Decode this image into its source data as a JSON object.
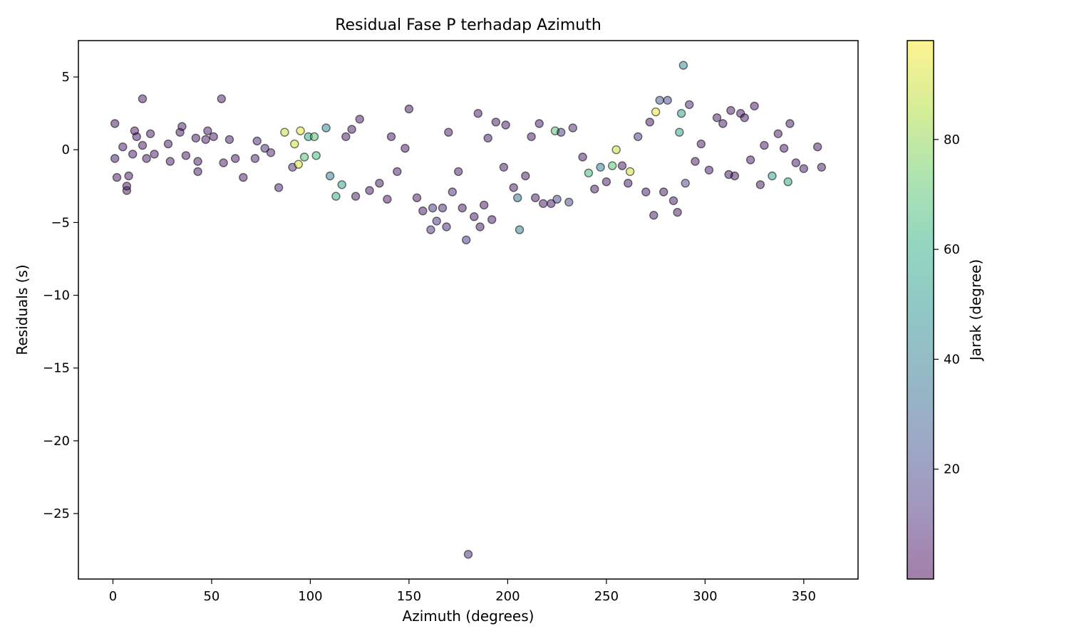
{
  "chart_data": {
    "type": "scatter",
    "title": "Residual Fase P terhadap Azimuth",
    "xlabel": "Azimuth (degrees)",
    "ylabel": "Residuals (s)",
    "xlim": [
      -17.5,
      377.5
    ],
    "ylim": [
      -29.5,
      7.5
    ],
    "xticks": [
      0,
      50,
      100,
      150,
      200,
      250,
      300,
      350
    ],
    "xtick_labels": [
      "0",
      "50",
      "100",
      "150",
      "200",
      "250",
      "300",
      "350"
    ],
    "yticks": [
      5,
      0,
      -5,
      -10,
      -15,
      -20,
      -25
    ],
    "ytick_labels": [
      "5",
      "0",
      "−5",
      "−10",
      "−15",
      "−20",
      "−25"
    ],
    "grid": false,
    "colorbar": {
      "label": "Jarak (degree)",
      "colormap": "viridis",
      "alpha": 0.5,
      "range": [
        0,
        98
      ],
      "ticks": [
        20,
        40,
        60,
        80
      ],
      "tick_labels": [
        "20",
        "40",
        "60",
        "80"
      ]
    },
    "points": [
      [
        1,
        1.8,
        4
      ],
      [
        1,
        -0.6,
        5
      ],
      [
        2,
        -1.9,
        5
      ],
      [
        5,
        0.2,
        5
      ],
      [
        7,
        -2.8,
        5
      ],
      [
        7,
        -2.5,
        5
      ],
      [
        8,
        -1.8,
        5
      ],
      [
        10,
        -0.3,
        6
      ],
      [
        11,
        1.3,
        6
      ],
      [
        12,
        0.9,
        5
      ],
      [
        15,
        3.5,
        5
      ],
      [
        15,
        0.3,
        5
      ],
      [
        17,
        -0.6,
        6
      ],
      [
        19,
        1.1,
        6
      ],
      [
        21,
        -0.3,
        6
      ],
      [
        28,
        0.4,
        5
      ],
      [
        29,
        -0.8,
        6
      ],
      [
        34,
        1.2,
        6
      ],
      [
        35,
        1.6,
        6
      ],
      [
        37,
        -0.4,
        5
      ],
      [
        42,
        0.8,
        6
      ],
      [
        43,
        -0.8,
        6
      ],
      [
        43,
        -1.5,
        6
      ],
      [
        47,
        0.7,
        6
      ],
      [
        48,
        1.3,
        6
      ],
      [
        51,
        0.9,
        6
      ],
      [
        55,
        3.5,
        6
      ],
      [
        56,
        -0.9,
        6
      ],
      [
        59,
        0.7,
        6
      ],
      [
        62,
        -0.6,
        6
      ],
      [
        66,
        -1.9,
        6
      ],
      [
        72,
        -0.6,
        8
      ],
      [
        73,
        0.6,
        8
      ],
      [
        77,
        0.1,
        10
      ],
      [
        80,
        -0.2,
        8
      ],
      [
        84,
        -2.6,
        8
      ],
      [
        87,
        1.2,
        88
      ],
      [
        91,
        -1.2,
        12
      ],
      [
        92,
        0.4,
        90
      ],
      [
        94,
        -1.0,
        92
      ],
      [
        95,
        1.3,
        94
      ],
      [
        97,
        -0.5,
        70
      ],
      [
        99,
        0.9,
        60
      ],
      [
        102,
        0.9,
        70
      ],
      [
        103,
        -0.4,
        65
      ],
      [
        108,
        1.5,
        45
      ],
      [
        110,
        -1.8,
        40
      ],
      [
        113,
        -3.2,
        60
      ],
      [
        116,
        -2.4,
        55
      ],
      [
        118,
        0.9,
        5
      ],
      [
        121,
        1.4,
        5
      ],
      [
        123,
        -3.2,
        5
      ],
      [
        125,
        2.1,
        5
      ],
      [
        130,
        -2.8,
        5
      ],
      [
        135,
        -2.3,
        5
      ],
      [
        139,
        -3.4,
        5
      ],
      [
        141,
        0.9,
        5
      ],
      [
        144,
        -1.5,
        5
      ],
      [
        148,
        0.1,
        5
      ],
      [
        150,
        2.8,
        5
      ],
      [
        154,
        -3.3,
        5
      ],
      [
        157,
        -4.2,
        5
      ],
      [
        161,
        -5.5,
        12
      ],
      [
        162,
        -4.0,
        15
      ],
      [
        164,
        -4.9,
        12
      ],
      [
        167,
        -4.0,
        10
      ],
      [
        169,
        -5.3,
        10
      ],
      [
        170,
        1.2,
        5
      ],
      [
        172,
        -2.9,
        10
      ],
      [
        175,
        -1.5,
        5
      ],
      [
        177,
        -4.0,
        5
      ],
      [
        179,
        -6.2,
        12
      ],
      [
        180,
        -27.8,
        10
      ],
      [
        183,
        -4.6,
        5
      ],
      [
        185,
        2.5,
        5
      ],
      [
        186,
        -5.3,
        5
      ],
      [
        188,
        -3.8,
        5
      ],
      [
        190,
        0.8,
        5
      ],
      [
        192,
        -4.8,
        5
      ],
      [
        194,
        1.9,
        5
      ],
      [
        198,
        -1.2,
        5
      ],
      [
        199,
        1.7,
        5
      ],
      [
        203,
        -2.6,
        5
      ],
      [
        205,
        -3.3,
        35
      ],
      [
        206,
        -5.5,
        40
      ],
      [
        209,
        -1.8,
        5
      ],
      [
        212,
        0.9,
        5
      ],
      [
        214,
        -3.3,
        5
      ],
      [
        216,
        1.8,
        5
      ],
      [
        218,
        -3.7,
        5
      ],
      [
        222,
        -3.7,
        5
      ],
      [
        224,
        1.3,
        70
      ],
      [
        225,
        -3.4,
        20
      ],
      [
        227,
        1.2,
        15
      ],
      [
        231,
        -3.6,
        20
      ],
      [
        233,
        1.5,
        10
      ],
      [
        238,
        -0.5,
        5
      ],
      [
        241,
        -1.6,
        65
      ],
      [
        244,
        -2.7,
        5
      ],
      [
        247,
        -1.2,
        40
      ],
      [
        250,
        -2.2,
        5
      ],
      [
        253,
        -1.1,
        70
      ],
      [
        255,
        0.0,
        88
      ],
      [
        258,
        -1.1,
        5
      ],
      [
        261,
        -2.3,
        5
      ],
      [
        262,
        -1.5,
        90
      ],
      [
        266,
        0.9,
        15
      ],
      [
        270,
        -2.9,
        5
      ],
      [
        272,
        1.9,
        5
      ],
      [
        274,
        -4.5,
        5
      ],
      [
        275,
        2.6,
        95
      ],
      [
        277,
        3.4,
        25
      ],
      [
        279,
        -2.9,
        5
      ],
      [
        281,
        3.4,
        20
      ],
      [
        284,
        -3.5,
        5
      ],
      [
        286,
        -4.3,
        5
      ],
      [
        287,
        1.2,
        55
      ],
      [
        288,
        2.5,
        55
      ],
      [
        289,
        5.8,
        45
      ],
      [
        290,
        -2.3,
        20
      ],
      [
        292,
        3.1,
        10
      ],
      [
        295,
        -0.8,
        5
      ],
      [
        298,
        0.4,
        5
      ],
      [
        302,
        -1.4,
        5
      ],
      [
        306,
        2.2,
        5
      ],
      [
        309,
        1.8,
        5
      ],
      [
        312,
        -1.7,
        5
      ],
      [
        313,
        2.7,
        5
      ],
      [
        315,
        -1.8,
        5
      ],
      [
        318,
        2.5,
        5
      ],
      [
        320,
        2.2,
        5
      ],
      [
        323,
        -0.7,
        5
      ],
      [
        325,
        3.0,
        5
      ],
      [
        328,
        -2.4,
        5
      ],
      [
        330,
        0.3,
        5
      ],
      [
        334,
        -1.8,
        55
      ],
      [
        337,
        1.1,
        5
      ],
      [
        340,
        0.1,
        5
      ],
      [
        342,
        -2.2,
        55
      ],
      [
        343,
        1.8,
        5
      ],
      [
        346,
        -0.9,
        5
      ],
      [
        350,
        -1.3,
        5
      ],
      [
        357,
        0.2,
        5
      ],
      [
        359,
        -1.2,
        5
      ]
    ]
  }
}
